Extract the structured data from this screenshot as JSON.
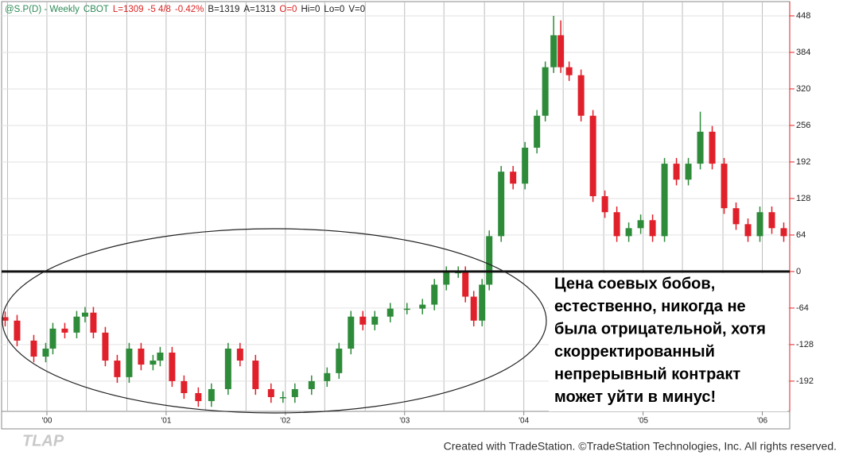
{
  "chart_data": {
    "type": "candlestick",
    "header_fields": [
      {
        "text": "@S.P(D) - Weekly",
        "color": "#2e8b57"
      },
      {
        "text": "CBOT",
        "color": "#2e8b57"
      },
      {
        "text": "L=1309",
        "color": "#d22"
      },
      {
        "text": "-5 4/8",
        "color": "#d22"
      },
      {
        "text": "-0.42%",
        "color": "#d22"
      },
      {
        "text": "B=1319",
        "color": "#222"
      },
      {
        "text": "A=1313",
        "color": "#222"
      },
      {
        "text": "O=0",
        "color": "#d22"
      },
      {
        "text": "Hi=0",
        "color": "#222"
      },
      {
        "text": "Lo=0",
        "color": "#222"
      },
      {
        "text": "V=0",
        "color": "#222"
      }
    ],
    "x": [
      1999.65,
      1999.75,
      1999.89,
      1999.99,
      2000.05,
      2000.15,
      2000.25,
      2000.32,
      2000.39,
      2000.49,
      2000.59,
      2000.69,
      2000.79,
      2000.89,
      2000.95,
      2001.05,
      2001.15,
      2001.27,
      2001.38,
      2001.52,
      2001.62,
      2001.75,
      2001.88,
      2001.98,
      2002.08,
      2002.22,
      2002.35,
      2002.45,
      2002.55,
      2002.65,
      2002.75,
      2002.88,
      2003.02,
      2003.15,
      2003.25,
      2003.35,
      2003.45,
      2003.51,
      2003.58,
      2003.65,
      2003.71,
      2003.81,
      2003.91,
      2004.01,
      2004.11,
      2004.18,
      2004.25,
      2004.31,
      2004.38,
      2004.48,
      2004.58,
      2004.68,
      2004.78,
      2004.88,
      2004.98,
      2005.08,
      2005.18,
      2005.28,
      2005.38,
      2005.48,
      2005.58,
      2005.68,
      2005.78,
      2005.88,
      2005.98,
      2006.08,
      2006.18
    ],
    "open": [
      -80,
      -86,
      -121,
      -149,
      -135,
      -100,
      -107,
      -79,
      -72,
      -107,
      -156,
      -185,
      -135,
      -163,
      -156,
      -142,
      -192,
      -213,
      -227,
      -206,
      -135,
      -156,
      -206,
      -220,
      -220,
      -206,
      -192,
      -178,
      -135,
      -79,
      -93,
      -79,
      -65,
      -65,
      -58,
      -23,
      -1,
      -1,
      -44,
      -86,
      -23,
      62,
      175,
      154,
      217,
      273,
      358,
      414,
      358,
      344,
      273,
      132,
      104,
      62,
      76,
      90,
      62,
      189,
      161,
      189,
      245,
      189,
      111,
      83,
      62,
      104,
      76
    ],
    "high": [
      -70,
      -76,
      -111,
      -125,
      -90,
      -90,
      -69,
      -62,
      -62,
      -97,
      -146,
      -125,
      -125,
      -146,
      -132,
      -132,
      -182,
      -203,
      -196,
      -125,
      -125,
      -146,
      -196,
      -210,
      -196,
      -182,
      -168,
      -125,
      -69,
      -69,
      -69,
      -55,
      -55,
      -48,
      -13,
      9,
      9,
      9,
      -34,
      -13,
      72,
      185,
      185,
      227,
      283,
      368,
      448,
      440,
      368,
      354,
      283,
      142,
      114,
      86,
      100,
      100,
      199,
      199,
      199,
      280,
      255,
      199,
      121,
      93,
      114,
      114,
      86
    ],
    "low": [
      -96,
      -131,
      -159,
      -159,
      -145,
      -117,
      -117,
      -89,
      -117,
      -166,
      -195,
      -195,
      -173,
      -173,
      -166,
      -202,
      -223,
      -237,
      -237,
      -216,
      -166,
      -216,
      -230,
      -230,
      -230,
      -216,
      -202,
      -188,
      -145,
      -103,
      -103,
      -89,
      -75,
      -75,
      -68,
      -33,
      -11,
      -54,
      -96,
      -96,
      -33,
      52,
      144,
      144,
      207,
      263,
      348,
      348,
      334,
      263,
      122,
      94,
      52,
      52,
      66,
      52,
      52,
      151,
      151,
      179,
      179,
      101,
      73,
      52,
      52,
      66,
      52
    ],
    "close": [
      -86,
      -121,
      -149,
      -135,
      -100,
      -107,
      -79,
      -72,
      -107,
      -156,
      -185,
      -135,
      -163,
      -156,
      -142,
      -192,
      -213,
      -227,
      -206,
      -135,
      -156,
      -206,
      -220,
      -220,
      -206,
      -192,
      -178,
      -135,
      -79,
      -93,
      -79,
      -65,
      -65,
      -58,
      -23,
      -1,
      -1,
      -44,
      -86,
      -23,
      62,
      175,
      154,
      217,
      273,
      358,
      414,
      358,
      344,
      273,
      132,
      104,
      62,
      76,
      90,
      62,
      189,
      161,
      189,
      245,
      189,
      111,
      83,
      62,
      104,
      76,
      62
    ],
    "up_color": "#2e8b3a",
    "down_color": "#e0202a",
    "xlim": [
      1999.62,
      2006.23
    ],
    "ylim": [
      -245,
      473
    ],
    "xticks": [
      {
        "value": 2000,
        "label": "'00"
      },
      {
        "value": 2001,
        "label": "'01"
      },
      {
        "value": 2002,
        "label": "'02"
      },
      {
        "value": 2003,
        "label": "'03"
      },
      {
        "value": 2004,
        "label": "'04"
      },
      {
        "value": 2005,
        "label": "'05"
      },
      {
        "value": 2006,
        "label": "'06"
      }
    ],
    "yticks": [
      448,
      384,
      320,
      256,
      192,
      128,
      64,
      0,
      -64,
      -128,
      -192
    ],
    "xgrid": [
      1999.67,
      2000,
      2000.33,
      2000.67,
      2001,
      2001.33,
      2001.67,
      2002,
      2002.33,
      2002.67,
      2003,
      2003.33,
      2003.67,
      2004,
      2004.33,
      2004.67,
      2005,
      2005.33,
      2005.67,
      2006
    ],
    "grid": true,
    "hline": 0,
    "annotation": [
      "Цена соевых бобов,",
      "естественно, никогда не",
      "была отрицательной, хотя",
      "скорректированный",
      "непрерывный контракт",
      "может уйти в минус!"
    ],
    "watermark": "TLAP",
    "footer": "Created with TradeStation. ©TradeStation Technologies, Inc. All rights reserved."
  }
}
